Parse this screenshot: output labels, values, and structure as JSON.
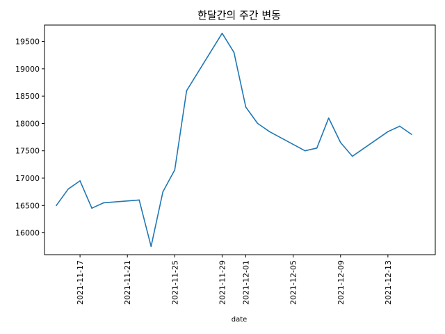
{
  "chart_data": {
    "type": "line",
    "title": "한달간의 주간 변동",
    "xlabel": "date",
    "ylabel": "",
    "x_ticks": [
      "2021-11-17",
      "2021-11-21",
      "2021-11-25",
      "2021-11-29",
      "2021-12-01",
      "2021-12-05",
      "2021-12-09",
      "2021-12-13"
    ],
    "y_ticks": [
      16000,
      16500,
      17000,
      17500,
      18000,
      18500,
      19000,
      19500
    ],
    "xlim": [
      "2021-11-14",
      "2021-12-17"
    ],
    "ylim": [
      15600,
      19800
    ],
    "grid": false,
    "legend": "none",
    "line_color": "#1f77b4",
    "series": [
      {
        "x": [
          "2021-11-15",
          "2021-11-16",
          "2021-11-17",
          "2021-11-18",
          "2021-11-19",
          "2021-11-22",
          "2021-11-23",
          "2021-11-24",
          "2021-11-25",
          "2021-11-26",
          "2021-11-29",
          "2021-11-30",
          "2021-12-01",
          "2021-12-02",
          "2021-12-03",
          "2021-12-06",
          "2021-12-07",
          "2021-12-08",
          "2021-12-09",
          "2021-12-10",
          "2021-12-13",
          "2021-12-14",
          "2021-12-15"
        ],
        "values": [
          16500,
          16800,
          16950,
          16450,
          16550,
          16600,
          15750,
          16750,
          17150,
          18600,
          19650,
          19300,
          18300,
          18000,
          17850,
          17500,
          17550,
          18100,
          17650,
          17400,
          17850,
          17950,
          17800
        ]
      }
    ]
  }
}
